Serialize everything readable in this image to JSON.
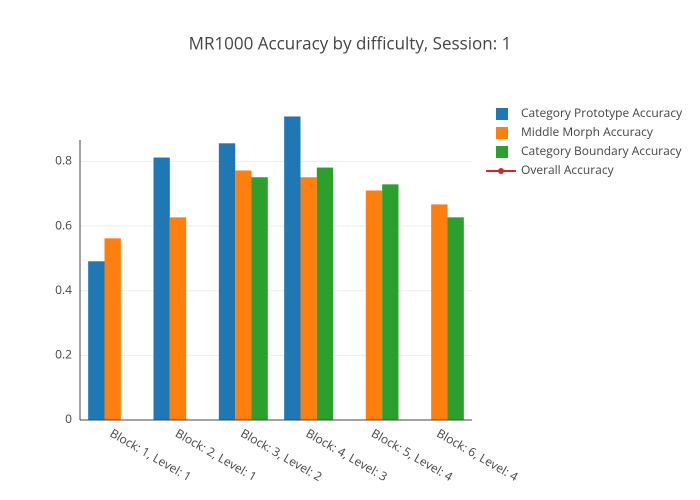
{
  "chart_data": {
    "type": "bar",
    "title": "MR1000 Accuracy by difficulty, Session: 1",
    "categories": [
      "Block: 1, Level: 1",
      "Block: 2, Level: 1",
      "Block: 3, Level: 2",
      "Block: 4, Level: 3",
      "Block: 5, Level: 4",
      "Block: 6, Level: 4"
    ],
    "series": [
      {
        "name": "Category Prototype Accuracy",
        "type": "bar",
        "color": "#1f77b4",
        "values": [
          0.491,
          0.812,
          0.856,
          0.939,
          null,
          null
        ]
      },
      {
        "name": "Middle Morph Accuracy",
        "type": "bar",
        "color": "#ff7f0e",
        "values": [
          0.562,
          0.627,
          0.772,
          0.751,
          0.71,
          0.667
        ]
      },
      {
        "name": "Category Boundary Accuracy",
        "type": "bar",
        "color": "#2ca02c",
        "values": [
          null,
          null,
          0.751,
          0.781,
          0.729,
          0.627
        ]
      },
      {
        "name": "Overall Accuracy",
        "type": "line",
        "color": "#d62728",
        "values": [
          null,
          null,
          null,
          null,
          null,
          null
        ]
      }
    ],
    "ylim": [
      0,
      0.99
    ],
    "yticks": [
      0,
      0.2,
      0.4,
      0.6,
      0.8
    ],
    "grid": true,
    "legend": "right"
  }
}
